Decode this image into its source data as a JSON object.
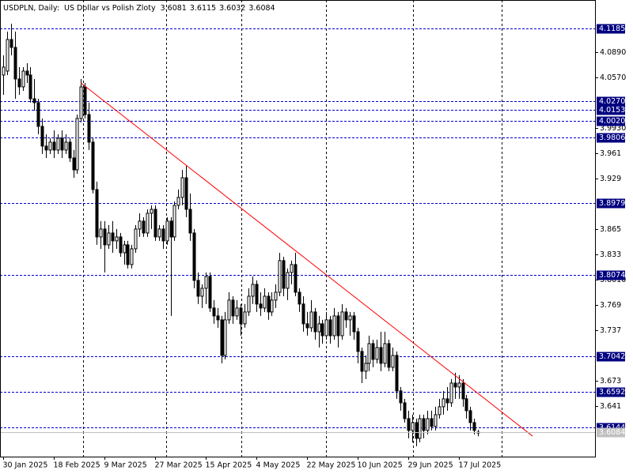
{
  "chart_data": {
    "type": "candlestick",
    "title": "USDPLN, Daily:  US Dollar vs Polish Zloty",
    "categories": [
      "30 Jan 2025",
      null,
      null,
      null,
      null,
      null,
      null,
      null,
      null,
      null,
      null,
      null,
      null,
      "18 Feb 2025",
      null,
      null,
      null,
      null,
      null,
      null,
      null,
      null,
      null,
      null,
      null,
      null,
      "9 Mar 2025",
      null,
      null,
      null,
      null,
      null,
      null,
      null,
      null,
      null,
      null,
      null,
      null,
      "27 Mar 2025",
      null,
      null,
      null,
      null,
      null,
      null,
      null,
      null,
      null,
      null,
      null,
      null,
      "15 Apr 2025",
      null,
      null,
      null,
      null,
      null,
      null,
      null,
      null,
      null,
      null,
      null,
      null,
      "4 May 2025",
      null,
      null,
      null,
      null,
      null,
      null,
      null,
      null,
      null,
      null,
      null,
      null,
      "22 May 2025",
      null,
      null,
      null,
      null,
      null,
      null,
      null,
      null,
      null,
      null,
      null,
      null,
      "10 Jun 2025",
      null,
      null,
      null,
      null,
      null,
      null,
      null,
      null,
      null,
      null,
      null,
      null,
      "29 Jun 2025",
      null,
      null,
      null,
      null,
      null,
      null,
      null,
      null,
      null,
      null,
      null,
      null,
      "17 Jul 2025",
      null,
      null,
      null,
      null,
      null
    ],
    "open": [
      4.0597,
      4.0647,
      4.1046,
      4.0946,
      4.0547,
      4.0447,
      4.0647,
      4.0597,
      4.0297,
      4.0248,
      3.9948,
      3.9699,
      3.9649,
      3.9749,
      3.9649,
      3.9798,
      3.9649,
      3.9749,
      3.9549,
      3.9399,
      4.0048,
      4.0447,
      4.0098,
      3.9749,
      3.915,
      3.8551,
      3.8651,
      3.8451,
      3.8601,
      3.8501,
      3.8551,
      3.8351,
      3.8451,
      3.8202,
      3.8401,
      3.8651,
      3.8751,
      3.8601,
      3.885,
      3.89,
      3.8551,
      3.8651,
      3.8501,
      3.8751,
      3.8551,
      3.895,
      3.905,
      3.9299,
      3.89,
      3.8601,
      3.8002,
      3.7802,
      3.7902,
      3.8052,
      3.7653,
      3.7553,
      3.7503,
      3.7054,
      3.7503,
      3.7753,
      3.7553,
      3.7653,
      3.7453,
      3.7603,
      3.7802,
      3.7952,
      3.7703,
      3.7653,
      3.7802,
      3.7603,
      3.7753,
      3.7852,
      3.8252,
      3.7902,
      3.8102,
      3.8202,
      3.7852,
      3.7703,
      3.7453,
      3.7403,
      3.7603,
      3.7353,
      3.7453,
      3.7303,
      3.7503,
      3.7303,
      3.7553,
      3.7303,
      3.7603,
      3.7503,
      3.7553,
      3.7353,
      3.7104,
      3.6854,
      3.6954,
      3.7203,
      3.7004,
      3.7154,
      3.6954,
      3.7203,
      3.6904,
      3.7054,
      3.6605,
      3.6455,
      3.6255,
      3.6106,
      3.6205,
      3.6006,
      3.6255,
      3.6106,
      3.6255,
      3.6156,
      3.6305,
      3.6405,
      3.6505,
      3.6455,
      3.6704,
      3.6655,
      3.6704,
      3.6505,
      3.6355,
      3.6205,
      3.6081
    ],
    "high": [
      4.0846,
      4.1146,
      4.1246,
      4.1146,
      4.0697,
      4.0697,
      4.0747,
      4.0697,
      4.0547,
      4.0297,
      4.0048,
      3.9848,
      3.9798,
      3.9898,
      3.9848,
      3.9898,
      3.9848,
      3.9798,
      3.9649,
      4.0098,
      4.0547,
      4.0497,
      4.0248,
      3.9798,
      3.925,
      3.8751,
      3.8751,
      3.8701,
      3.8751,
      3.8651,
      3.8601,
      3.8501,
      3.8501,
      3.8451,
      3.8701,
      3.885,
      3.88,
      3.89,
      3.895,
      3.895,
      3.8701,
      3.8701,
      3.88,
      3.88,
      3.9,
      3.915,
      3.9399,
      3.9449,
      3.91,
      3.8651,
      3.8102,
      3.7952,
      3.8102,
      3.8102,
      3.7753,
      3.7653,
      3.7553,
      3.7603,
      3.7852,
      3.7802,
      3.7753,
      3.7703,
      3.7703,
      3.7902,
      3.8052,
      3.8002,
      3.7852,
      3.7902,
      3.7852,
      3.7852,
      3.7952,
      3.8351,
      3.8301,
      3.8152,
      3.8252,
      3.8351,
      3.7902,
      3.7802,
      3.7603,
      3.7753,
      3.7653,
      3.7553,
      3.7503,
      3.7603,
      3.7553,
      3.7653,
      3.7603,
      3.7703,
      3.7653,
      3.7603,
      3.7603,
      3.7403,
      3.7154,
      3.7054,
      3.7303,
      3.7253,
      3.7253,
      3.7353,
      3.7353,
      3.7253,
      3.7154,
      3.7104,
      3.6655,
      3.6505,
      3.6355,
      3.6305,
      3.6255,
      3.6305,
      3.6305,
      3.6355,
      3.6355,
      3.6405,
      3.6505,
      3.6605,
      3.6655,
      3.6754,
      3.6834,
      3.6804,
      3.6754,
      3.6555,
      3.6405,
      3.6255,
      3.6115
    ],
    "low": [
      4.0347,
      4.0597,
      4.0846,
      4.0297,
      4.0347,
      4.0397,
      4.0497,
      4.0248,
      4.0148,
      3.9848,
      3.9599,
      3.9549,
      3.9599,
      3.9549,
      3.9599,
      3.9549,
      3.9599,
      3.9499,
      3.9299,
      3.9349,
      3.9998,
      4.0048,
      3.9649,
      3.91,
      3.8451,
      3.8401,
      3.8102,
      3.8401,
      3.8351,
      3.8401,
      3.8301,
      3.8202,
      3.8152,
      3.8152,
      3.8351,
      3.8551,
      3.8551,
      3.8551,
      3.8651,
      3.8501,
      3.8501,
      3.8401,
      3.8451,
      3.7553,
      3.8501,
      3.89,
      3.895,
      3.88,
      3.8501,
      3.7902,
      3.7703,
      3.7653,
      3.7703,
      3.7603,
      3.7453,
      3.7403,
      3.6954,
      3.7004,
      3.7453,
      3.7453,
      3.7503,
      3.7303,
      3.7403,
      3.7553,
      3.7703,
      3.7603,
      3.7553,
      3.7603,
      3.7503,
      3.7553,
      3.7653,
      3.7802,
      3.7802,
      3.7753,
      3.7952,
      3.7802,
      3.7603,
      3.7353,
      3.7303,
      3.7353,
      3.7253,
      3.7154,
      3.7203,
      3.7253,
      3.7203,
      3.7253,
      3.7154,
      3.7253,
      3.7403,
      3.7303,
      3.7253,
      3.6954,
      3.6704,
      3.6754,
      3.6854,
      3.6904,
      3.6954,
      3.6854,
      3.6904,
      3.6854,
      3.6854,
      3.6505,
      3.6355,
      3.6205,
      3.6006,
      3.5956,
      3.5906,
      3.5956,
      3.6006,
      3.6056,
      3.6106,
      3.6106,
      3.6255,
      3.6305,
      3.6355,
      3.6405,
      3.6505,
      3.6505,
      3.6405,
      3.6255,
      3.6106,
      3.6056,
      3.6032
    ],
    "close": [
      4.0697,
      4.1046,
      4.0946,
      4.0547,
      4.0447,
      4.0647,
      4.0597,
      4.0297,
      4.0248,
      3.9948,
      3.9699,
      3.9649,
      3.9749,
      3.9649,
      3.9798,
      3.9649,
      3.9749,
      3.9549,
      3.9399,
      4.0048,
      4.0447,
      4.0098,
      3.9749,
      3.915,
      3.8551,
      3.8651,
      3.8451,
      3.8601,
      3.8501,
      3.8551,
      3.8351,
      3.8451,
      3.8202,
      3.8401,
      3.8651,
      3.8751,
      3.8601,
      3.885,
      3.89,
      3.8551,
      3.8651,
      3.8501,
      3.8751,
      3.8551,
      3.895,
      3.905,
      3.9299,
      3.89,
      3.8601,
      3.8002,
      3.7802,
      3.7902,
      3.8052,
      3.7653,
      3.7553,
      3.7503,
      3.7054,
      3.7503,
      3.7753,
      3.7553,
      3.7653,
      3.7453,
      3.7603,
      3.7802,
      3.7952,
      3.7703,
      3.7653,
      3.7802,
      3.7603,
      3.7753,
      3.7852,
      3.8252,
      3.7902,
      3.8102,
      3.8202,
      3.7852,
      3.7703,
      3.7453,
      3.7403,
      3.7603,
      3.7353,
      3.7453,
      3.7303,
      3.7503,
      3.7303,
      3.7553,
      3.7303,
      3.7603,
      3.7503,
      3.7553,
      3.7353,
      3.7104,
      3.6854,
      3.6954,
      3.7203,
      3.7004,
      3.7154,
      3.6954,
      3.7203,
      3.6904,
      3.7054,
      3.6605,
      3.6455,
      3.6255,
      3.6106,
      3.6205,
      3.6006,
      3.6255,
      3.6106,
      3.6255,
      3.6156,
      3.6305,
      3.6405,
      3.6505,
      3.6455,
      3.6704,
      3.6655,
      3.6704,
      3.6505,
      3.6355,
      3.6205,
      3.6106,
      3.6084
    ],
    "color": "#000000",
    "ylim": [
      3.5775,
      4.1545
    ],
    "yticks": [
      {
        "value": 4.089,
        "label": "4.0890"
      },
      {
        "value": 4.057,
        "label": "4.0570"
      },
      {
        "value": 3.993,
        "label": "3.9930"
      },
      3.961,
      3.929,
      3.865,
      3.833,
      {
        "value": 3.801,
        "label": "3.8010"
      },
      3.769,
      3.737,
      3.673,
      3.641
    ],
    "levels": [
      4.1185,
      {
        "value": 4.027,
        "label": "4.0270"
      },
      4.0153,
      {
        "value": 4.002,
        "label": "4.0020"
      },
      3.9806,
      3.8979,
      3.8074,
      3.7042,
      3.6592,
      3.6144
    ],
    "level_color": "#0000cd",
    "trendline": {
      "color": "#ff0000",
      "start_index": 20,
      "end_index": 136,
      "start": 4.0496,
      "end": 3.6034
    }
  }
}
